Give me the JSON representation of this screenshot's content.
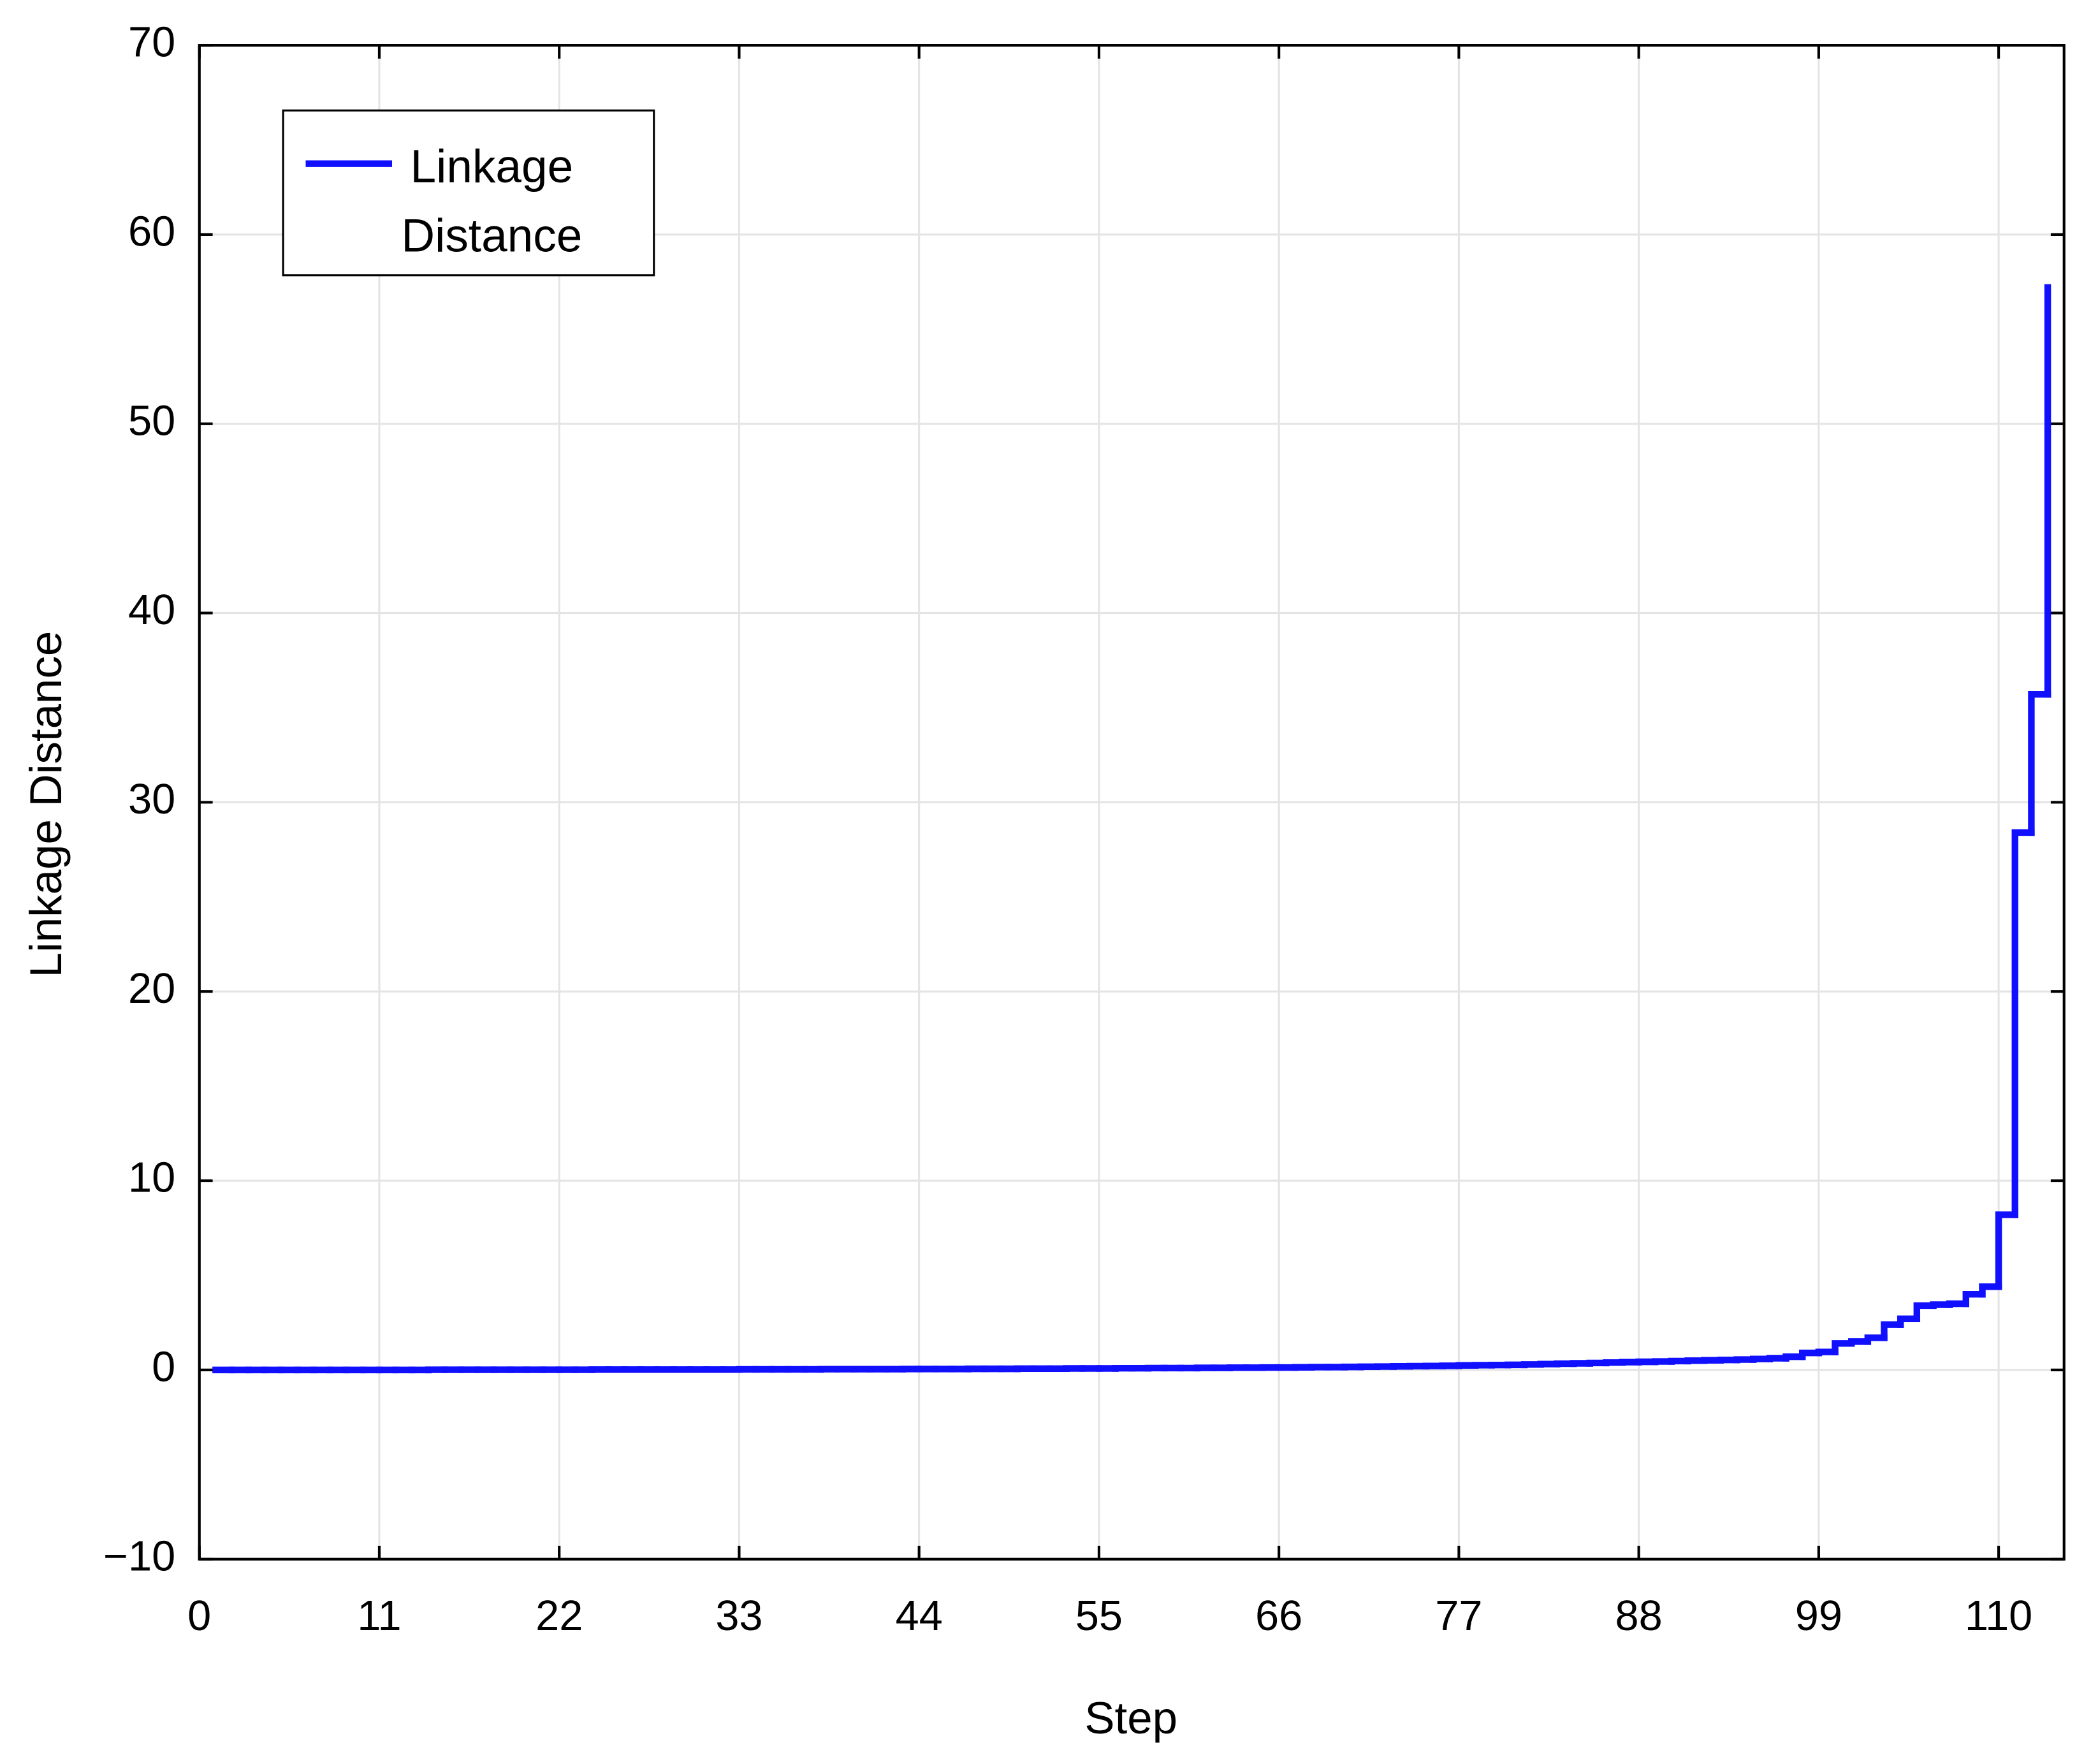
{
  "chart_data": {
    "type": "step",
    "xlabel": "Step",
    "ylabel": "Linkage Distance",
    "x": [
      1,
      2,
      3,
      4,
      5,
      6,
      7,
      8,
      9,
      10,
      11,
      12,
      13,
      14,
      15,
      16,
      17,
      18,
      19,
      20,
      21,
      22,
      23,
      24,
      25,
      26,
      27,
      28,
      29,
      30,
      31,
      32,
      33,
      34,
      35,
      36,
      37,
      38,
      39,
      40,
      41,
      42,
      43,
      44,
      45,
      46,
      47,
      48,
      49,
      50,
      51,
      52,
      53,
      54,
      55,
      56,
      57,
      58,
      59,
      60,
      61,
      62,
      63,
      64,
      65,
      66,
      67,
      68,
      69,
      70,
      71,
      72,
      73,
      74,
      75,
      76,
      77,
      78,
      79,
      80,
      81,
      82,
      83,
      84,
      85,
      86,
      87,
      88,
      89,
      90,
      91,
      92,
      93,
      94,
      95,
      96,
      97,
      98,
      99,
      100,
      101,
      102,
      103,
      104,
      105,
      106,
      107,
      108,
      109,
      110,
      111,
      112,
      113
    ],
    "series": [
      {
        "name": "Linkage Distance",
        "color": "#1010ff",
        "values": [
          0.0,
          0.0,
          0.0,
          0.0,
          0.0,
          0.0,
          0.0,
          0.0,
          0.0,
          0.0,
          0.0,
          0.0,
          0.0,
          0.01,
          0.01,
          0.01,
          0.01,
          0.01,
          0.01,
          0.01,
          0.01,
          0.01,
          0.01,
          0.02,
          0.02,
          0.02,
          0.02,
          0.02,
          0.02,
          0.02,
          0.02,
          0.02,
          0.03,
          0.03,
          0.03,
          0.03,
          0.03,
          0.04,
          0.04,
          0.04,
          0.04,
          0.04,
          0.05,
          0.05,
          0.05,
          0.05,
          0.06,
          0.06,
          0.06,
          0.07,
          0.07,
          0.07,
          0.08,
          0.08,
          0.08,
          0.09,
          0.09,
          0.1,
          0.1,
          0.1,
          0.11,
          0.11,
          0.12,
          0.12,
          0.13,
          0.13,
          0.14,
          0.15,
          0.15,
          0.16,
          0.17,
          0.18,
          0.19,
          0.2,
          0.21,
          0.22,
          0.24,
          0.25,
          0.26,
          0.27,
          0.29,
          0.31,
          0.33,
          0.35,
          0.37,
          0.39,
          0.41,
          0.43,
          0.45,
          0.47,
          0.49,
          0.51,
          0.53,
          0.55,
          0.58,
          0.62,
          0.7,
          0.9,
          0.95,
          1.4,
          1.5,
          1.7,
          2.4,
          2.7,
          3.4,
          3.45,
          3.5,
          4.0,
          4.4,
          8.2,
          28.4,
          35.7,
          57.2
        ]
      }
    ],
    "xlim": [
      0,
      114
    ],
    "xticks": [
      0,
      11,
      22,
      33,
      44,
      55,
      66,
      77,
      88,
      99,
      110
    ],
    "ylim": [
      -10,
      70
    ],
    "yticks": [
      {
        "value": -10,
        "label": "−10"
      },
      0,
      10,
      20,
      30,
      40,
      50,
      60,
      70
    ],
    "grid": true,
    "legend": "upper left"
  }
}
